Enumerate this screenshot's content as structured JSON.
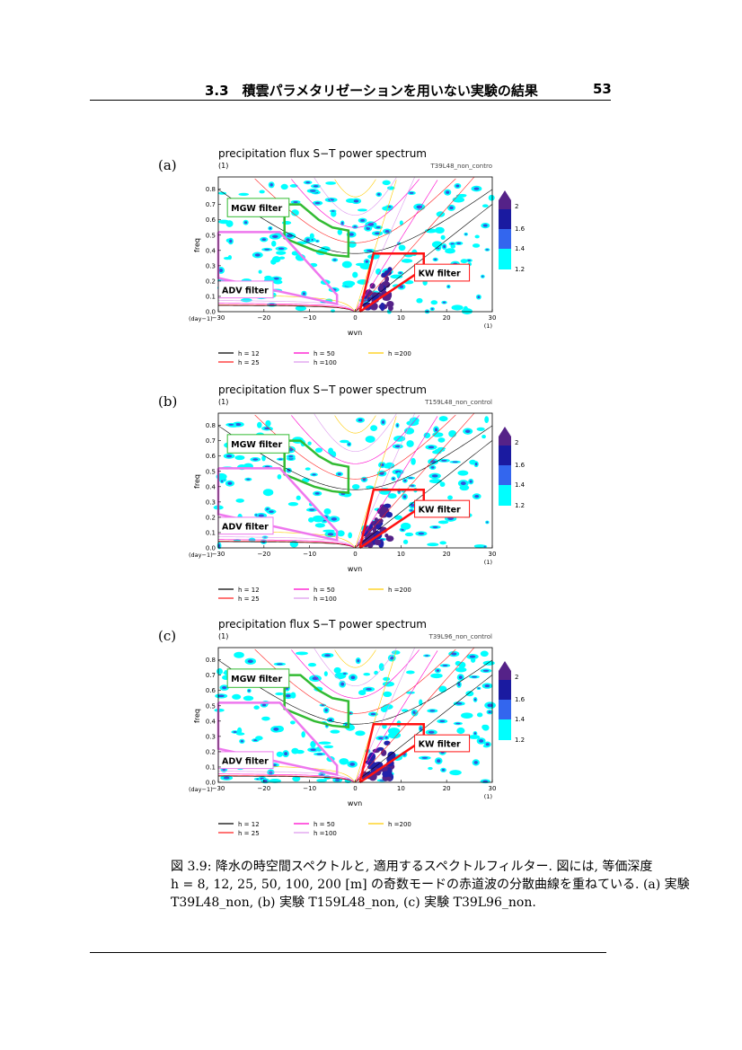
{
  "header": {
    "section": "3.3　積雲パラメタリゼーションを用いない実験の結果",
    "page_number": "53"
  },
  "panels": [
    {
      "label": "(a)",
      "title": "precipitation flux S−T power spectrum",
      "unit": "(1)",
      "run": "T39L48_non_contro"
    },
    {
      "label": "(b)",
      "title": "precipitation flux S−T power spectrum",
      "unit": "(1)",
      "run": "T159L48_non_control"
    },
    {
      "label": "(c)",
      "title": "precipitation flux S−T power spectrum",
      "unit": "(1)",
      "run": "T39L96_non_control"
    }
  ],
  "chart_data": {
    "type": "heatmap",
    "xlabel": "wvn",
    "ylabel": "freq",
    "x_unit": "(1)",
    "y_unit": "(day−1)",
    "xlim": [
      -30,
      30
    ],
    "ylim": [
      0,
      0.88
    ],
    "xticks": [
      "−30",
      "−20",
      "−10",
      "0",
      "10",
      "20",
      "30"
    ],
    "xtick_values": [
      -30,
      -20,
      -10,
      0,
      10,
      20,
      30
    ],
    "yticks": [
      "0.0",
      "0.1",
      "0.2",
      "0.3",
      "0.4",
      "0.5",
      "0.6",
      "0.7",
      "0.8"
    ],
    "ytick_values": [
      0,
      0.1,
      0.2,
      0.3,
      0.4,
      0.5,
      0.6,
      0.7,
      0.8
    ],
    "colorbar": {
      "ticks": [
        "2",
        "1.6",
        "1.4",
        "1.2"
      ],
      "tick_values": [
        2,
        1.6,
        1.4,
        1.2
      ],
      "colors": [
        "#552288",
        "#1a1aa0",
        "#3366ee",
        "#00ffff"
      ]
    },
    "legend": [
      {
        "label": "h = 12",
        "color": "#000000",
        "h": 12
      },
      {
        "label": "h = 25",
        "color": "#ff2020",
        "h": 25
      },
      {
        "label": "h = 50",
        "color": "#ff00cc",
        "h": 50
      },
      {
        "label": "h =100",
        "color": "#dd99ee",
        "h": 100
      },
      {
        "label": "h =200",
        "color": "#ffcc00",
        "h": 200
      }
    ],
    "filters": [
      {
        "name": "MGW filter",
        "color": "#33bb33",
        "polygon": [
          [
            -15.5,
            0.7
          ],
          [
            -12,
            0.7
          ],
          [
            -8,
            0.6
          ],
          [
            -5,
            0.55
          ],
          [
            -1.5,
            0.53
          ],
          [
            -1.5,
            0.36
          ],
          [
            -5,
            0.37
          ],
          [
            -9,
            0.4
          ],
          [
            -15.5,
            0.48
          ],
          [
            -15.5,
            0.7
          ]
        ],
        "label_box": [
          [
            -28,
            0.74
          ],
          [
            -14.5,
            0.62
          ]
        ]
      },
      {
        "name": "ADV filter",
        "color": "#ee77ee",
        "polygon": [
          [
            -30,
            0.52
          ],
          [
            -16.5,
            0.52
          ],
          [
            -4,
            0.11
          ],
          [
            -4,
            0.05
          ],
          [
            -30,
            0.22
          ],
          [
            -30,
            0.52
          ]
        ],
        "label_box": [
          [
            -30,
            0.2
          ],
          [
            -18,
            0.09
          ]
        ]
      },
      {
        "name": "KW filter",
        "color": "#ff1111",
        "polygon": [
          [
            1,
            0
          ],
          [
            4,
            0.38
          ],
          [
            15,
            0.38
          ],
          [
            15,
            0.28
          ],
          [
            13,
            0.24
          ],
          [
            1,
            0
          ]
        ],
        "label_box": [
          [
            13,
            0.31
          ],
          [
            25,
            0.2
          ]
        ]
      }
    ]
  },
  "caption": {
    "lines": [
      "図 3.9: 降水の時空間スペクトルと, 適用するスペクトルフィルター. 図には, 等価深度",
      "h = 8, 12, 25, 50, 100, 200 [m] の奇数モードの赤道波の分散曲線を重ねている. (a) 実験",
      "T39L48_non, (b) 実験 T159L48_non, (c) 実験 T39L96_non."
    ]
  }
}
